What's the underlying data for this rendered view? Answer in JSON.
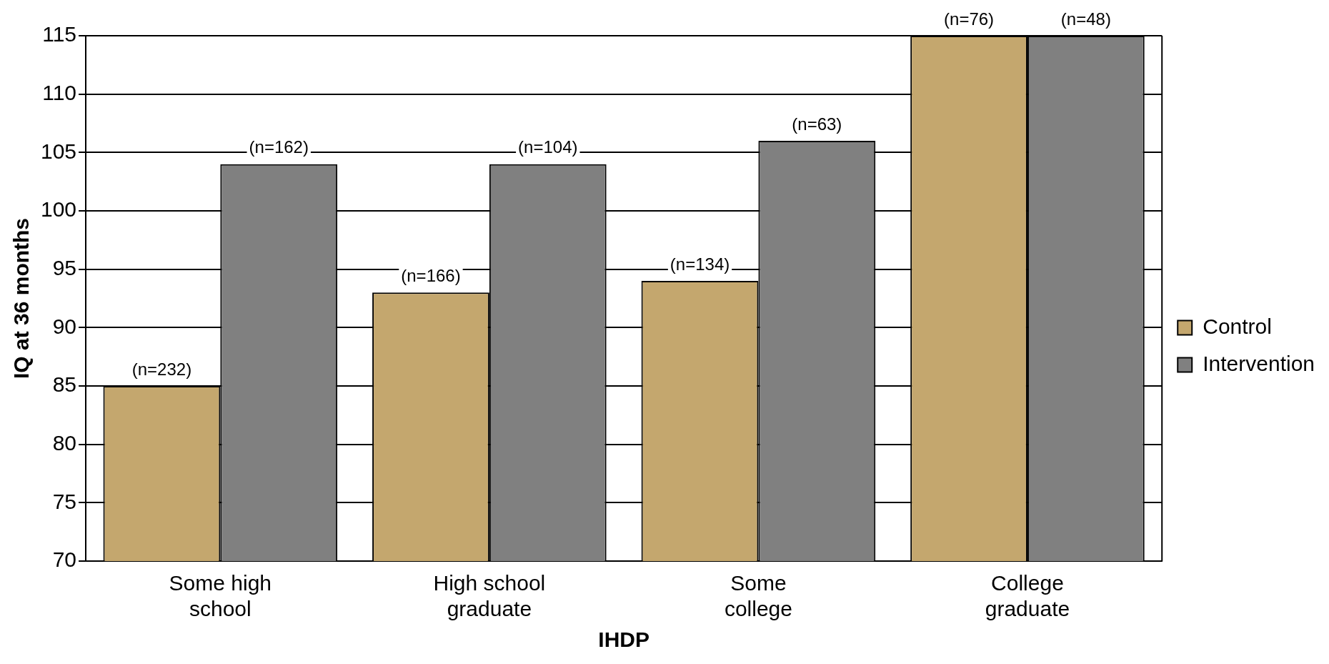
{
  "chart_data": {
    "type": "bar",
    "xlabel": "IHDP",
    "ylabel": "IQ at 36 months",
    "categories": [
      "Some high school",
      "High school graduate",
      "Some college",
      "College graduate"
    ],
    "series": [
      {
        "name": "Control",
        "color": "#c4a76e",
        "values": [
          85,
          93,
          94,
          115
        ]
      },
      {
        "name": "Intervention",
        "color": "#808080",
        "values": [
          104,
          104,
          106,
          115
        ]
      }
    ],
    "annotations": [
      {
        "text": "(n=232)",
        "x": "Some high school",
        "y": 85
      },
      {
        "text": "(n=162)",
        "x": "Some high school",
        "y": 104
      },
      {
        "text": "(n=166)",
        "x": "High school graduate",
        "y": 93
      },
      {
        "text": "(n=104)",
        "x": "High school graduate",
        "y": 104
      },
      {
        "text": "(n=134)",
        "x": "Some college",
        "y": 94
      },
      {
        "text": "(n=63)",
        "x": "Some college",
        "y": 106
      },
      {
        "text": "(n=76)",
        "x": "College graduate",
        "y": 115
      },
      {
        "text": "(n=48)",
        "x": "College graduate",
        "y": 115
      }
    ],
    "ylim": [
      70,
      115
    ],
    "yticks": [
      70,
      75,
      80,
      85,
      90,
      95,
      100,
      105,
      110,
      115
    ],
    "grid": "y",
    "legend": "right"
  }
}
